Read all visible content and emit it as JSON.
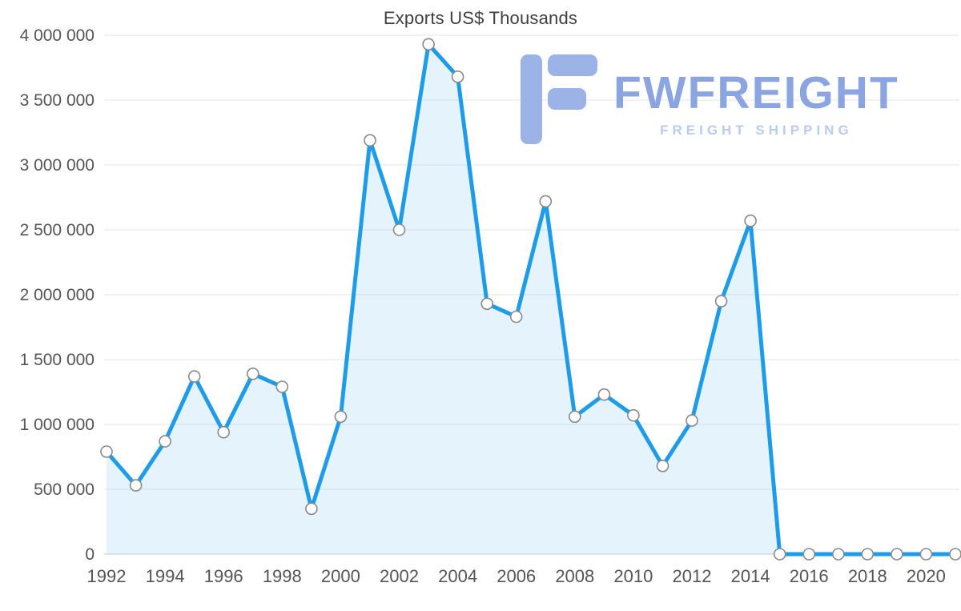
{
  "chart_data": {
    "type": "area",
    "title": "Exports US$ Thousands",
    "series_name": "Exports",
    "x": [
      1992,
      1993,
      1994,
      1995,
      1996,
      1997,
      1998,
      1999,
      2000,
      2001,
      2002,
      2003,
      2004,
      2005,
      2006,
      2007,
      2008,
      2009,
      2010,
      2011,
      2012,
      2013,
      2014,
      2015,
      2016,
      2017,
      2018,
      2019,
      2020,
      2021
    ],
    "values": [
      790000,
      530000,
      870000,
      1370000,
      940000,
      1390000,
      1290000,
      350000,
      1060000,
      3190000,
      2500000,
      3930000,
      3680000,
      1930000,
      1830000,
      2720000,
      1060000,
      1230000,
      1070000,
      680000,
      1030000,
      1950000,
      2570000,
      0,
      0,
      0,
      0,
      0,
      0,
      0
    ],
    "x_tick_labels": [
      "1992",
      "1994",
      "1996",
      "1998",
      "2000",
      "2002",
      "2004",
      "2006",
      "2008",
      "2010",
      "2012",
      "2014",
      "2016",
      "2018",
      "2020"
    ],
    "y_ticks": [
      0,
      500000,
      1000000,
      1500000,
      2000000,
      2500000,
      3000000,
      3500000,
      4000000
    ],
    "y_tick_label_format": "space-separated thousands",
    "xlim": [
      1992,
      2021
    ],
    "ylim": [
      0,
      4000000
    ],
    "grid": true,
    "legend": "none",
    "line_color": "#1E9BE9",
    "fill_opacity": 0.12,
    "marker_fill": "#FFFFFF",
    "marker_stroke": "#8A8A8A",
    "gridline_color": "#E6E6E6",
    "axis_line_color": "#CCCCCC",
    "label_color": "#555555",
    "title_color": "#3F3F3F"
  },
  "watermark": {
    "brand": "FWFREIGHT",
    "tagline": "FREIGHT SHIPPING",
    "brand_color": "#7C99DE",
    "tagline_color": "#AFC6EE",
    "icon_color": "#8FA9E4"
  }
}
